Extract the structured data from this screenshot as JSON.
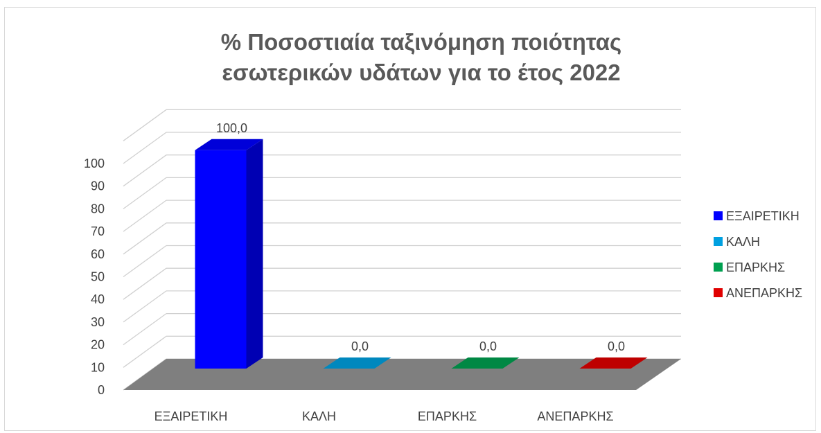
{
  "chart_data": {
    "type": "bar",
    "title_lines": [
      "% Ποσοστιαία ταξινόμηση ποιότητας",
      "εσωτερικών υδάτων για το έτος 2022"
    ],
    "categories": [
      "ΕΞΑΙΡΕΤΙΚΗ",
      "ΚΑΛΗ",
      "ΕΠΑΡΚΗΣ",
      "ΑΝΕΠΑΡΚΗΣ"
    ],
    "values": [
      100.0,
      0.0,
      0.0,
      0.0
    ],
    "data_labels": [
      "100,0",
      "0,0",
      "0,0",
      "0,0"
    ],
    "colors": [
      "#0000ff",
      "#00a0e0",
      "#00a050",
      "#e00000"
    ],
    "ylim": [
      0,
      100
    ],
    "yticks": [
      "0",
      "10",
      "20",
      "30",
      "40",
      "50",
      "60",
      "70",
      "80",
      "90",
      "100"
    ],
    "legend": {
      "placement": "right",
      "entries": [
        "ΕΞΑΙΡΕΤΙΚΗ",
        "ΚΑΛΗ",
        "ΕΠΑΡΚΗΣ",
        "ΑΝΕΠΑΡΚΗΣ"
      ]
    },
    "grid": true,
    "style": "3d-column"
  }
}
